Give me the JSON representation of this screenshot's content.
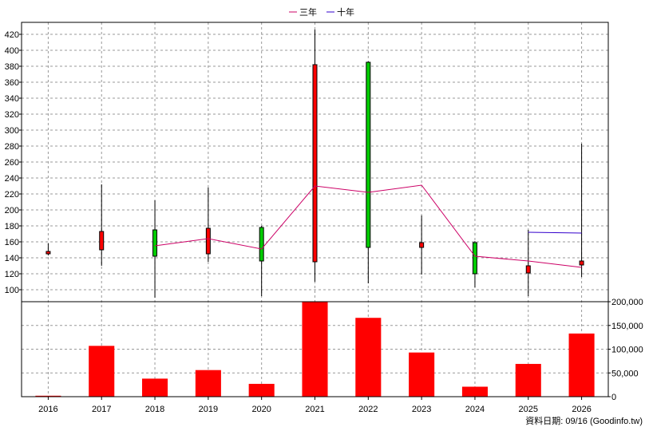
{
  "chart_data": {
    "type": "candlestick+bar",
    "legend": {
      "placement": "top-center",
      "items": [
        {
          "label": "三年",
          "color": "#cc0066"
        },
        {
          "label": "十年",
          "color": "#3300cc"
        }
      ]
    },
    "x_categories": [
      "2016",
      "2017",
      "2018",
      "2019",
      "2020",
      "2021",
      "2022",
      "2023",
      "2024",
      "2025",
      "2026"
    ],
    "price_axis": {
      "ylim": [
        85,
        435
      ],
      "ticks": [
        "100",
        "120",
        "140",
        "160",
        "180",
        "200",
        "220",
        "240",
        "260",
        "280",
        "300",
        "320",
        "340",
        "360",
        "380",
        "400",
        "420"
      ]
    },
    "candles": [
      {
        "year": "2016",
        "open": 145,
        "high": 158,
        "low": 143,
        "close": 148,
        "color": "#ff0000"
      },
      {
        "year": "2017",
        "open": 173,
        "high": 232,
        "low": 130,
        "close": 150,
        "color": "#ff0000"
      },
      {
        "year": "2018",
        "open": 142,
        "high": 212,
        "low": 90,
        "close": 175,
        "color": "#00cc00"
      },
      {
        "year": "2019",
        "open": 177,
        "high": 228,
        "low": 135,
        "close": 145,
        "color": "#ff0000"
      },
      {
        "year": "2020",
        "open": 136,
        "high": 180,
        "low": 92,
        "close": 178,
        "color": "#00cc00"
      },
      {
        "year": "2021",
        "open": 382,
        "high": 426,
        "low": 110,
        "close": 135,
        "color": "#ff0000"
      },
      {
        "year": "2022",
        "open": 153,
        "high": 386,
        "low": 108,
        "close": 385,
        "color": "#00cc00"
      },
      {
        "year": "2023",
        "open": 159,
        "high": 193,
        "low": 119,
        "close": 153,
        "color": "#ff0000"
      },
      {
        "year": "2024",
        "open": 120,
        "high": 161,
        "low": 103,
        "close": 159,
        "color": "#00cc00"
      },
      {
        "year": "2025",
        "open": 130,
        "high": 175,
        "low": 92,
        "close": 121,
        "color": "#ff0000"
      },
      {
        "year": "2026",
        "open": 136,
        "high": 283,
        "low": 116,
        "close": 131,
        "color": "#ff0000"
      }
    ],
    "series": [
      {
        "name": "三年",
        "color": "#cc0066",
        "points": [
          [
            "2018",
            155
          ],
          [
            "2019",
            164
          ],
          [
            "2020",
            151
          ],
          [
            "2021",
            230
          ],
          [
            "2022",
            222
          ],
          [
            "2023",
            231
          ],
          [
            "2024",
            142
          ],
          [
            "2025",
            136
          ],
          [
            "2026",
            128
          ]
        ]
      },
      {
        "name": "十年",
        "color": "#3300cc",
        "points": [
          [
            "2025",
            172
          ],
          [
            "2026",
            171
          ]
        ]
      }
    ],
    "volume_axis": {
      "ylim": [
        0,
        200000
      ],
      "ticks": [
        {
          "value": 0,
          "label": "0"
        },
        {
          "value": 50000,
          "label": "50,000"
        },
        {
          "value": 100000,
          "label": "100,000"
        },
        {
          "value": 150000,
          "label": "150,000"
        },
        {
          "value": 200000,
          "label": "200,000"
        }
      ]
    },
    "volumes": [
      2000,
      107000,
      38000,
      56000,
      27000,
      200000,
      166000,
      93000,
      21000,
      69000,
      133000
    ],
    "volume_color": "#ff0000",
    "grid": true,
    "footer_note": "資料日期: 09/16 (Goodinfo.tw)"
  }
}
